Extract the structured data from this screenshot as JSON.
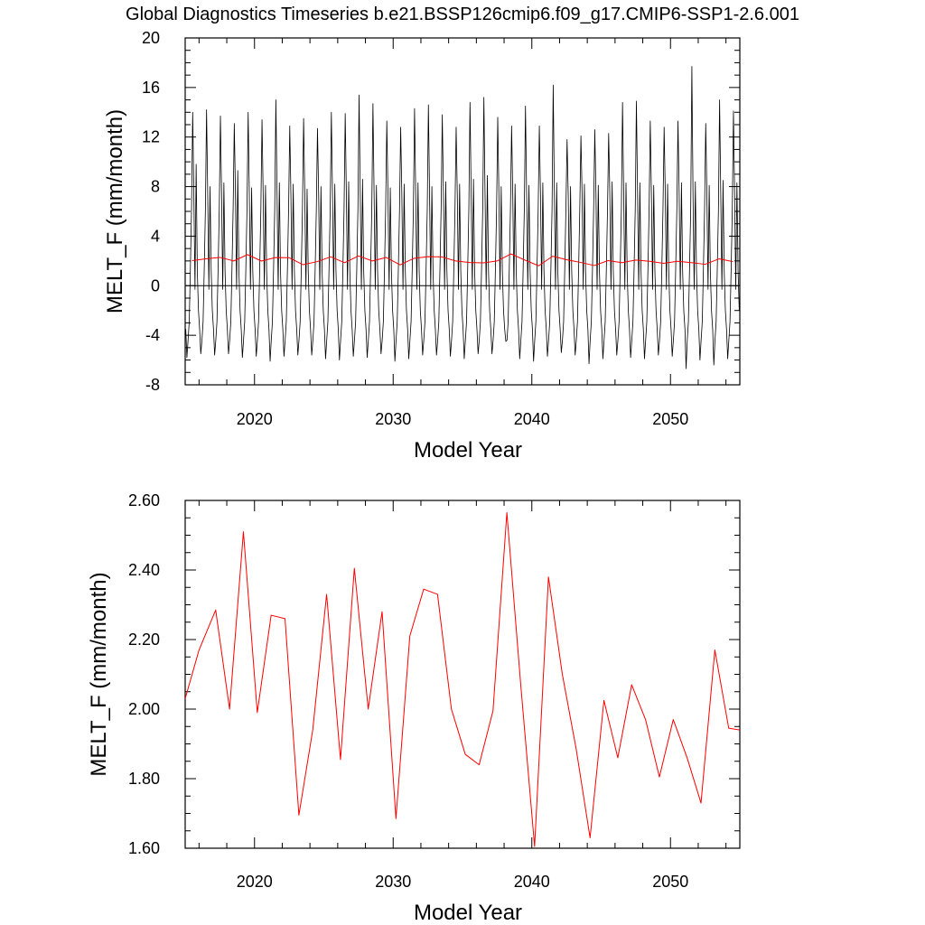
{
  "title": "Global Diagnostics Timeseries b.e21.BSSP126cmip6.f09_g17.CMIP6-SSP1-2.6.001",
  "chart_data": [
    {
      "type": "line",
      "xlabel": "Model Year",
      "ylabel": "MELT_F (mm/month)",
      "xlim": [
        2015,
        2055
      ],
      "ylim": [
        -8,
        20
      ],
      "xticks": [
        2020,
        2030,
        2040,
        2050
      ],
      "xtick_labels": [
        "2020",
        "2030",
        "2040",
        "2050"
      ],
      "yticks": [
        -8,
        -4,
        0,
        4,
        8,
        12,
        16,
        20
      ],
      "ytick_labels": [
        "-8",
        "-4",
        "0",
        "4",
        "8",
        "12",
        "16",
        "20"
      ],
      "grid": false,
      "zero_line": true,
      "series": [
        {
          "kind": "monthly",
          "color": "#000000",
          "start_year": 2015,
          "annual_peaks": [
            14.0,
            14.2,
            13.7,
            13.1,
            14.0,
            13.4,
            15.0,
            12.9,
            13.5,
            12.7,
            14.0,
            13.9,
            15.4,
            14.7,
            13.3,
            12.8,
            14.3,
            14.6,
            13.8,
            12.8,
            14.8,
            15.2,
            13.6,
            12.9,
            14.5,
            12.9,
            16.2,
            11.8,
            12.1,
            12.6,
            12.3,
            14.8,
            14.9,
            13.3,
            12.8,
            13.3,
            17.7,
            13.1,
            15.0,
            14.1
          ],
          "annual_secondary": [
            9.8,
            8.0,
            8.3,
            9.3,
            7.9,
            8.1,
            8.3,
            8.2,
            7.8,
            8.0,
            8.2,
            8.4,
            8.6,
            8.1,
            7.9,
            8.2,
            8.3,
            8.0,
            8.4,
            8.2,
            8.6,
            8.9,
            8.0,
            8.2,
            8.1,
            8.3,
            8.3,
            8.0,
            8.2,
            8.1,
            8.4,
            8.3,
            8.3,
            8.1,
            8.2,
            8.3,
            8.4,
            8.1,
            8.5,
            8.3
          ],
          "annual_minima": [
            -5.8,
            -5.5,
            -5.6,
            -5.5,
            -5.8,
            -5.7,
            -6.1,
            -5.7,
            -5.6,
            -5.6,
            -5.9,
            -6.0,
            -5.7,
            -5.8,
            -5.5,
            -6.1,
            -5.9,
            -5.6,
            -5.6,
            -5.7,
            -5.9,
            -5.5,
            -5.5,
            -4.5,
            -5.9,
            -6.1,
            -5.7,
            -5.4,
            -5.6,
            -6.3,
            -5.9,
            -5.6,
            -5.8,
            -5.9,
            -5.6,
            -5.7,
            -6.7,
            -6.0,
            -6.4,
            -5.9
          ]
        },
        {
          "kind": "annual",
          "color": "#ff0000",
          "x": [
            2015.5,
            2016.5,
            2017.5,
            2018.5,
            2019.5,
            2020.5,
            2021.5,
            2022.5,
            2023.5,
            2024.5,
            2025.5,
            2026.5,
            2027.5,
            2028.5,
            2029.5,
            2030.5,
            2031.5,
            2032.5,
            2033.5,
            2034.5,
            2035.5,
            2036.5,
            2037.5,
            2038.5,
            2039.5,
            2040.5,
            2041.5,
            2042.5,
            2043.5,
            2044.5,
            2045.5,
            2046.5,
            2047.5,
            2048.5,
            2049.5,
            2050.5,
            2051.5,
            2052.5,
            2053.5,
            2054.5
          ],
          "y": [
            2.03,
            2.17,
            2.285,
            2.0,
            2.51,
            1.99,
            2.27,
            2.26,
            1.695,
            1.94,
            2.33,
            1.855,
            2.405,
            2.0,
            2.28,
            1.685,
            2.21,
            2.345,
            2.33,
            2.0,
            1.87,
            1.84,
            1.995,
            2.565,
            2.07,
            1.605,
            2.38,
            2.1,
            1.885,
            1.63,
            2.025,
            1.86,
            2.07,
            1.97,
            1.805,
            1.97,
            1.86,
            1.73,
            2.17,
            1.945
          ]
        }
      ]
    },
    {
      "type": "line",
      "xlabel": "Model Year",
      "ylabel": "MELT_F (mm/month)",
      "xlim": [
        2015,
        2055
      ],
      "ylim": [
        1.6,
        2.6
      ],
      "xticks": [
        2020,
        2030,
        2040,
        2050
      ],
      "xtick_labels": [
        "2020",
        "2030",
        "2040",
        "2050"
      ],
      "yticks": [
        1.6,
        1.8,
        2.0,
        2.2,
        2.4,
        2.6
      ],
      "ytick_labels": [
        "1.60",
        "1.80",
        "2.00",
        "2.20",
        "2.40",
        "2.60"
      ],
      "grid": false,
      "series": [
        {
          "kind": "annual",
          "color": "#ff0000",
          "x": [
            2015.0,
            2016.0,
            2017.2,
            2018.2,
            2019.2,
            2020.2,
            2021.2,
            2022.2,
            2023.2,
            2024.2,
            2025.2,
            2026.2,
            2027.2,
            2028.2,
            2029.2,
            2030.2,
            2031.2,
            2032.2,
            2033.2,
            2034.2,
            2035.2,
            2036.2,
            2037.2,
            2038.2,
            2039.2,
            2040.2,
            2041.2,
            2042.2,
            2043.2,
            2044.2,
            2045.2,
            2046.2,
            2047.2,
            2048.2,
            2049.2,
            2050.2,
            2051.2,
            2052.2,
            2053.2,
            2054.2,
            2055.0
          ],
          "y": [
            2.03,
            2.17,
            2.285,
            2.0,
            2.51,
            1.99,
            2.27,
            2.26,
            1.695,
            1.94,
            2.33,
            1.855,
            2.405,
            2.0,
            2.28,
            1.685,
            2.21,
            2.345,
            2.33,
            2.0,
            1.87,
            1.84,
            1.995,
            2.565,
            2.07,
            1.605,
            2.38,
            2.1,
            1.885,
            1.63,
            2.025,
            1.86,
            2.07,
            1.97,
            1.805,
            1.97,
            1.86,
            1.73,
            2.17,
            1.945,
            1.94
          ]
        }
      ]
    }
  ]
}
